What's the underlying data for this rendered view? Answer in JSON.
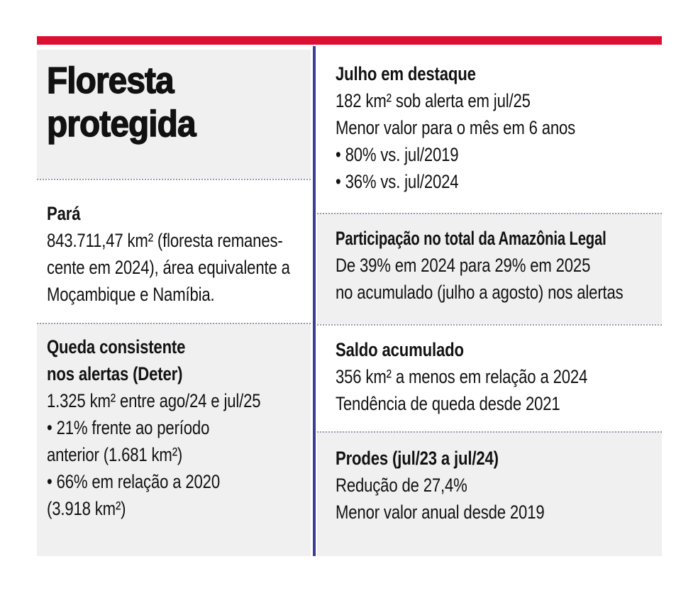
{
  "colors": {
    "accent_red": "#dc0f32",
    "divider_blue": "#3e3e99",
    "panel_grey": "#f0f0f1",
    "dotted_separator": "#9b9bb2",
    "text": "#121212"
  },
  "title": {
    "line1": "Floresta",
    "line2": "protegida"
  },
  "left": {
    "sections": [
      {
        "heading": [
          "Pará"
        ],
        "lines": [
          "843.711,47 km² (floresta remanes-",
          "cente em 2024), área equivalente a",
          "Moçambique e Namíbia."
        ]
      },
      {
        "heading": [
          "Queda consistente",
          "nos alertas (Deter)"
        ],
        "lines": [
          "1.325 km² entre ago/24 e jul/25",
          "• 21% frente ao período",
          "anterior (1.681 km²)",
          "• 66% em relação a 2020",
          "(3.918 km²)"
        ]
      }
    ]
  },
  "right": {
    "sections": [
      {
        "heading": [
          "Julho em destaque"
        ],
        "lines": [
          "182 km² sob alerta em jul/25",
          "Menor valor para o mês em 6 anos",
          "• 80% vs. jul/2019",
          "• 36% vs. jul/2024"
        ]
      },
      {
        "heading": [
          "Participação no total da Amazônia Legal"
        ],
        "lines": [
          "De 39% em 2024 para 29% em 2025",
          "no acumulado (julho a agosto) nos alertas"
        ]
      },
      {
        "heading": [
          "Saldo acumulado"
        ],
        "lines": [
          "356 km² a menos em relação a 2024",
          "Tendência de queda desde 2021"
        ]
      },
      {
        "heading": [
          "Prodes (jul/23 a jul/24)"
        ],
        "lines": [
          "Redução de 27,4%",
          "Menor valor anual desde 2019"
        ]
      }
    ]
  }
}
